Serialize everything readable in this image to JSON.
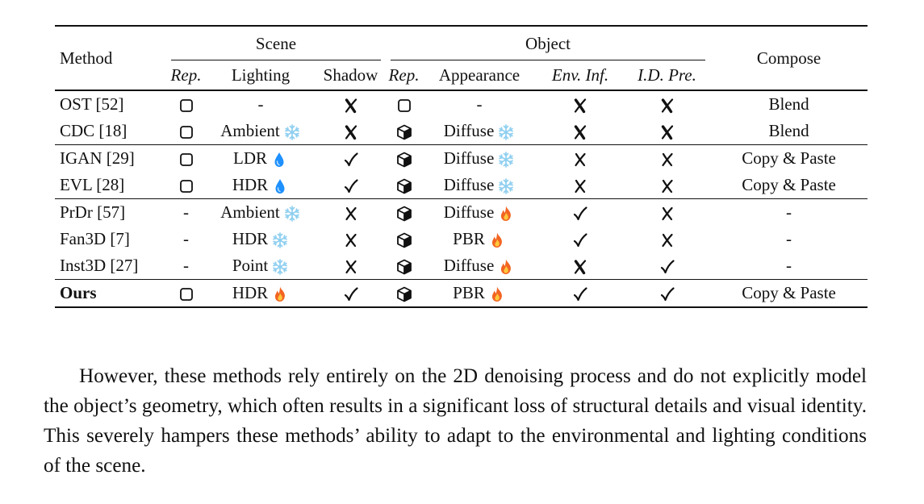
{
  "table": {
    "headers": {
      "method": "Method",
      "scene": "Scene",
      "object": "Object",
      "compose": "Compose",
      "scene_rep": "Rep.",
      "lighting": "Lighting",
      "shadow": "Shadow",
      "object_rep": "Rep.",
      "appearance": "Appearance",
      "env_inf": "Env. Inf.",
      "id_pre": "I.D. Pre."
    },
    "rows": [
      {
        "method": "OST [52]",
        "scene_rep": "square",
        "lighting": "-",
        "lighting_icon": "",
        "shadow": "heavy-x",
        "object_rep": "square",
        "appearance": "-",
        "appearance_icon": "",
        "env_inf": "heavy-x",
        "id_pre": "heavy-x",
        "compose": "Blend"
      },
      {
        "method": "CDC [18]",
        "scene_rep": "square",
        "lighting": "Ambient",
        "lighting_icon": "snowflake",
        "shadow": "heavy-x",
        "object_rep": "cube",
        "appearance": "Diffuse",
        "appearance_icon": "snowflake",
        "env_inf": "heavy-x",
        "id_pre": "heavy-x",
        "compose": "Blend"
      },
      {
        "method": "IGAN [29]",
        "scene_rep": "square",
        "lighting": "LDR",
        "lighting_icon": "droplet",
        "shadow": "check",
        "object_rep": "cube",
        "appearance": "Diffuse",
        "appearance_icon": "snowflake",
        "env_inf": "x",
        "id_pre": "x",
        "compose": "Copy & Paste"
      },
      {
        "method": "EVL [28]",
        "scene_rep": "square",
        "lighting": "HDR",
        "lighting_icon": "droplet",
        "shadow": "check",
        "object_rep": "cube",
        "appearance": "Diffuse",
        "appearance_icon": "snowflake",
        "env_inf": "x",
        "id_pre": "x",
        "compose": "Copy & Paste"
      },
      {
        "method": "PrDr [57]",
        "scene_rep": "-",
        "lighting": "Ambient",
        "lighting_icon": "snowflake",
        "shadow": "x",
        "object_rep": "cube",
        "appearance": "Diffuse",
        "appearance_icon": "fire",
        "env_inf": "check",
        "id_pre": "x",
        "compose": "-"
      },
      {
        "method": "Fan3D [7]",
        "scene_rep": "-",
        "lighting": "HDR",
        "lighting_icon": "snowflake",
        "shadow": "x",
        "object_rep": "cube",
        "appearance": "PBR",
        "appearance_icon": "fire",
        "env_inf": "check",
        "id_pre": "x",
        "compose": "-"
      },
      {
        "method": "Inst3D [27]",
        "scene_rep": "-",
        "lighting": "Point",
        "lighting_icon": "snowflake",
        "shadow": "x",
        "object_rep": "cube",
        "appearance": "Diffuse",
        "appearance_icon": "fire",
        "env_inf": "heavy-x",
        "id_pre": "check",
        "compose": "-"
      },
      {
        "method": "Ours",
        "scene_rep": "square",
        "lighting": "HDR",
        "lighting_icon": "fire",
        "shadow": "check",
        "object_rep": "cube",
        "appearance": "PBR",
        "appearance_icon": "fire",
        "env_inf": "check",
        "id_pre": "check",
        "compose": "Copy & Paste"
      }
    ],
    "group_starts": [
      2,
      4,
      7
    ],
    "bold_rows": [
      7
    ]
  },
  "paragraph": "However, these methods rely entirely on the 2D denoising process and do not explicitly model the object’s geometry, which often results in a significant loss of structural details and visual identity. This severely hampers these methods’ ability to adapt to the environmental and lighting conditions of the scene.",
  "colors": {
    "ink": "#111111",
    "droplet": "#1e90ff",
    "snowflake": "#8fcff0",
    "fire": "#f26522",
    "fire_core": "#ffc83d"
  }
}
